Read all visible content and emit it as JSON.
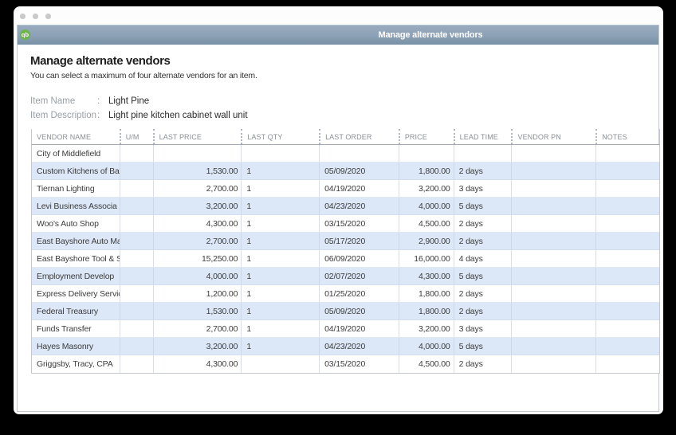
{
  "colors": {
    "titlebar_top": "#9badc0",
    "titlebar_bottom": "#7890a6",
    "row_alt": "#dce8f7",
    "qb_icon_green": "#6db748",
    "background": "#000000"
  },
  "window": {
    "titlebar": {
      "title": "Manage alternate vendors",
      "icon": "qb-logo"
    }
  },
  "page": {
    "heading": "Manage alternate vendors",
    "subheading": "You can select a maximum of four alternate vendors for an item.",
    "item_fields": [
      {
        "label": "Item Name",
        "separator": ":",
        "value": "Light Pine"
      },
      {
        "label": "Item Description",
        "separator": ":",
        "value": "Light pine kitchen cabinet wall unit"
      }
    ]
  },
  "table": {
    "column_keys": [
      "vendor-name",
      "um",
      "last-price",
      "last-qty",
      "last-order",
      "price",
      "lead-time",
      "vendor-pn",
      "notes"
    ],
    "columns": [
      "VENDOR NAME",
      "U/M",
      "LAST PRICE",
      "LAST QTY",
      "LAST ORDER",
      "PRICE",
      "LEAD TIME",
      "VENDOR PN",
      "NOTES"
    ],
    "rows": [
      {
        "cells": [
          "City of Middlefield",
          "",
          "",
          "",
          "",
          "",
          "",
          "",
          ""
        ]
      },
      {
        "cells": [
          "Custom Kitchens of Ba",
          "",
          "1,530.00",
          "1",
          "05/09/2020",
          "1,800.00",
          "2 days",
          "",
          ""
        ]
      },
      {
        "cells": [
          "Tiernan Lighting",
          "",
          "2,700.00",
          "1",
          "04/19/2020",
          "3,200.00",
          "3 days",
          "",
          ""
        ]
      },
      {
        "cells": [
          "Levi Business Associa",
          "",
          "3,200.00",
          "1",
          "04/23/2020",
          "4,000.00",
          "5 days",
          "",
          ""
        ]
      },
      {
        "cells": [
          "Woo's Auto Shop",
          "",
          "4,300.00",
          "1",
          "03/15/2020",
          "4,500.00",
          "2 days",
          "",
          ""
        ]
      },
      {
        "cells": [
          "East Bayshore Auto Ma",
          "",
          "2,700.00",
          "1",
          "05/17/2020",
          "2,900.00",
          "2 days",
          "",
          ""
        ]
      },
      {
        "cells": [
          "East Bayshore Tool & S",
          "",
          "15,250.00",
          "1",
          "06/09/2020",
          "16,000.00",
          "4 days",
          "",
          ""
        ]
      },
      {
        "cells": [
          "Employment Develop",
          "",
          "4,000.00",
          "1",
          "02/07/2020",
          "4,300.00",
          "5 days",
          "",
          ""
        ]
      },
      {
        "cells": [
          "Express Delivery Servic",
          "",
          "1,200.00",
          "1",
          "01/25/2020",
          "1,800.00",
          "2 days",
          "",
          ""
        ]
      },
      {
        "cells": [
          "Federal Treasury",
          "",
          "1,530.00",
          "1",
          "05/09/2020",
          "1,800.00",
          "2 days",
          "",
          ""
        ]
      },
      {
        "cells": [
          "Funds Transfer",
          "",
          "2,700.00",
          "1",
          "04/19/2020",
          "3,200.00",
          "3 days",
          "",
          ""
        ]
      },
      {
        "cells": [
          "Hayes Masonry",
          "",
          "3,200.00",
          "1",
          "04/23/2020",
          "4,000.00",
          "5 days",
          "",
          ""
        ]
      },
      {
        "cells": [
          "Griggsby, Tracy, CPA",
          "",
          "4,300.00",
          "",
          "03/15/2020",
          "4,500.00",
          "2 days",
          "",
          ""
        ]
      }
    ]
  }
}
